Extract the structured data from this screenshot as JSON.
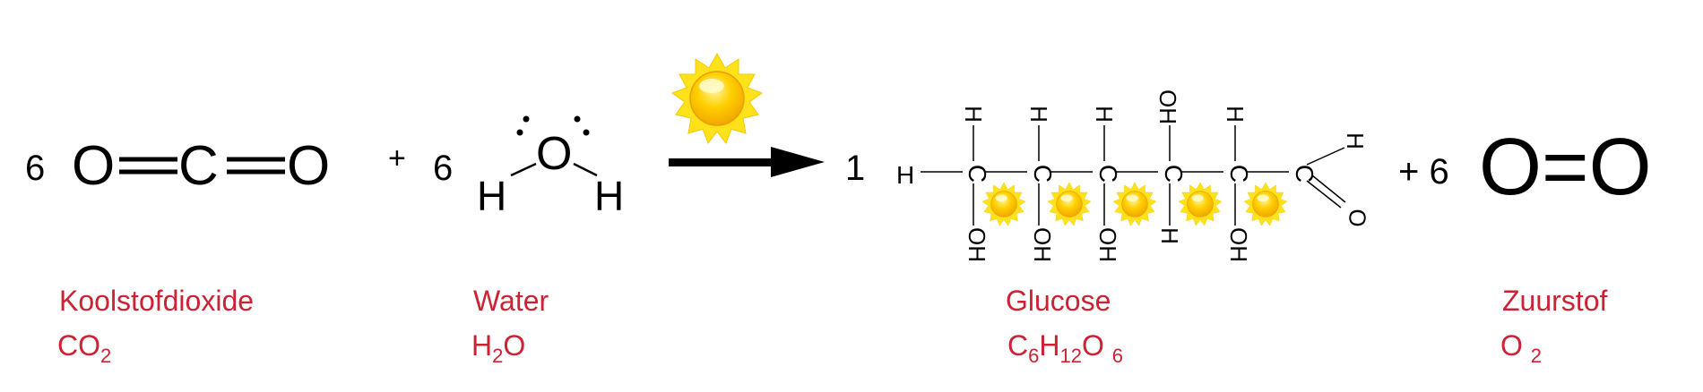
{
  "reactants": {
    "co2": {
      "coef": "6",
      "atoms": [
        "O",
        "C",
        "O"
      ]
    },
    "plus": "+",
    "h2o": {
      "coef": "6",
      "atoms": [
        "H",
        "O",
        "H"
      ]
    }
  },
  "products": {
    "glucose": {
      "coef": "1",
      "top_h": [
        "H",
        "H",
        "H",
        "OH",
        "H"
      ],
      "chain_c": [
        "C",
        "C",
        "C",
        "C",
        "C",
        "C"
      ],
      "left_h": "H",
      "bottom_groups": [
        "OH",
        "OH",
        "OH",
        "H",
        "OH"
      ],
      "aldehyde_h": "H",
      "aldehyde_o": "O"
    },
    "oxygen": {
      "plus_coef": "+ 6",
      "formula": "O=O"
    }
  },
  "labels": {
    "co2_name": "Koolstofdioxide",
    "co2_formula": {
      "parts": [
        "CO",
        "2"
      ]
    },
    "water_name": "Water",
    "water_formula": {
      "parts": [
        "H",
        "2",
        "O"
      ]
    },
    "glucose_name": "Glucose",
    "glucose_formula": {
      "parts": [
        "C",
        "6",
        "H",
        "12",
        "O ",
        "6"
      ]
    },
    "oxygen_name": "Zuurstof",
    "oxygen_formula": {
      "parts": [
        "O ",
        "2"
      ]
    }
  },
  "colors": {
    "label": "#cc2233",
    "sun_core": "#ffc400",
    "sun_rays": "#ffe21a",
    "text": "#000000"
  },
  "icons": [
    "sun-icon",
    "reaction-arrow-icon"
  ]
}
